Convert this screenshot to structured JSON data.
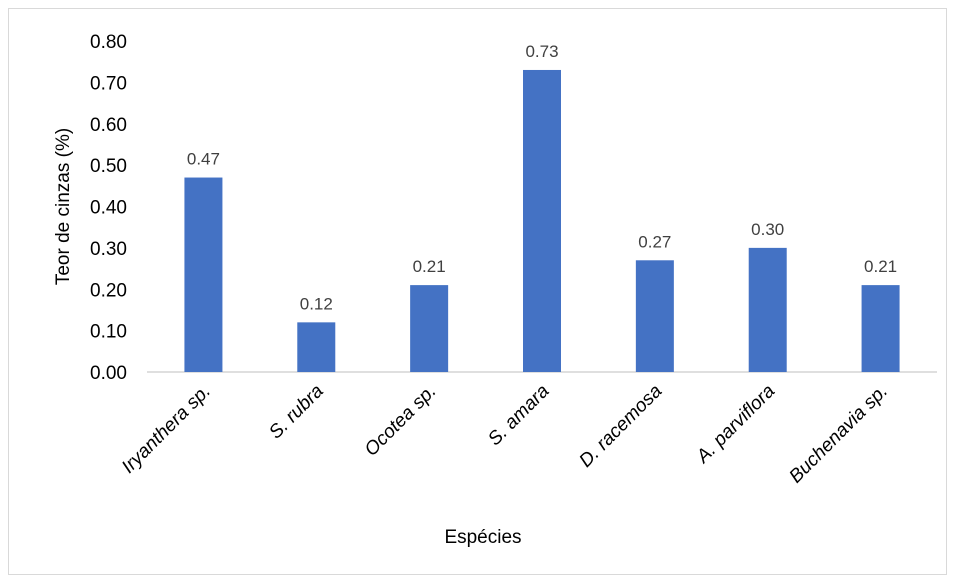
{
  "chart_data": {
    "type": "bar",
    "title": "",
    "xlabel": "Espécies",
    "ylabel": "Teor de cinzas (%)",
    "categories": [
      "Iryanthera sp.",
      "S. rubra",
      "Ocotea sp.",
      "S. amara",
      "D. racemosa",
      "A. parviflora",
      "Buchenavia sp."
    ],
    "values": [
      0.47,
      0.12,
      0.21,
      0.73,
      0.27,
      0.3,
      0.21
    ],
    "data_labels": [
      "0.47",
      "0.12",
      "0.21",
      "0.73",
      "0.27",
      "0.30",
      "0.21"
    ],
    "ylim": [
      0,
      0.8
    ],
    "yticks": [
      "0.00",
      "0.10",
      "0.20",
      "0.30",
      "0.40",
      "0.50",
      "0.60",
      "0.70",
      "0.80"
    ],
    "bar_color": "#4472c4",
    "grid": false,
    "legend": "none"
  }
}
